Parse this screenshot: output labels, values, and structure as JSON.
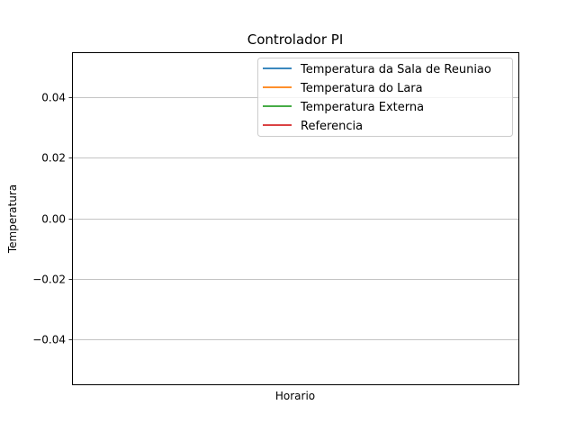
{
  "chart_data": {
    "type": "line",
    "title": "Controlador PI",
    "xlabel": "Horario",
    "ylabel": "Temperatura",
    "ylim": [
      -0.055,
      0.055
    ],
    "yticks": [
      0.04,
      0.02,
      0.0,
      -0.02,
      -0.04
    ],
    "ytick_labels": [
      "0.04",
      "0.02",
      "0.00",
      "−0.02",
      "−0.04"
    ],
    "grid": "horizontal",
    "legend_position": "upper right",
    "series": [
      {
        "name": "Temperatura da Sala de Reuniao",
        "color": "#1f77b4",
        "x": [],
        "y": []
      },
      {
        "name": "Temperatura do Lara",
        "color": "#ff7f0e",
        "x": [],
        "y": []
      },
      {
        "name": "Temperatura Externa",
        "color": "#2ca02c",
        "x": [],
        "y": []
      },
      {
        "name": "Referencia",
        "color": "#d62728",
        "x": [],
        "y": []
      }
    ]
  }
}
